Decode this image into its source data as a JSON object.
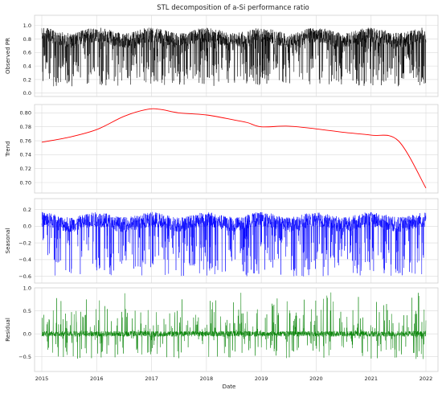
{
  "chart_data": {
    "type": "line",
    "title": "STL decomposition of a-Si performance ratio",
    "xlabel": "Date",
    "x_ticks": [
      "2015",
      "2016",
      "2017",
      "2018",
      "2019",
      "2020",
      "2021",
      "2022"
    ],
    "x_range": [
      "2015-01-01",
      "2022-01-01"
    ],
    "panels": [
      {
        "name": "observed",
        "ylabel": "Observed PR",
        "color": "#000000",
        "ylim": [
          -0.05,
          1.15
        ],
        "y_ticks": [
          "0.0",
          "0.2",
          "0.4",
          "0.6",
          "0.8",
          "1.0"
        ],
        "y_tick_values": [
          0.0,
          0.2,
          0.4,
          0.6,
          0.8,
          1.0
        ],
        "series_points_note": "daily values, approximately 0.1 to 1.12"
      },
      {
        "name": "trend",
        "ylabel": "Trend",
        "color": "#ff0000",
        "ylim": [
          0.685,
          0.812
        ],
        "y_ticks": [
          "0.70",
          "0.72",
          "0.74",
          "0.76",
          "0.78",
          "0.80"
        ],
        "y_tick_values": [
          0.7,
          0.72,
          0.74,
          0.76,
          0.78,
          0.8
        ],
        "x": [
          "2015-01-01",
          "2015-07-01",
          "2016-01-01",
          "2016-07-01",
          "2016-12-01",
          "2017-03-01",
          "2017-07-01",
          "2018-01-01",
          "2018-07-01",
          "2018-10-01",
          "2019-01-01",
          "2019-07-01",
          "2020-01-01",
          "2020-07-01",
          "2021-01-01",
          "2021-07-01",
          "2022-01-01"
        ],
        "values": [
          0.758,
          0.765,
          0.776,
          0.795,
          0.805,
          0.805,
          0.8,
          0.797,
          0.79,
          0.786,
          0.78,
          0.781,
          0.777,
          0.772,
          0.768,
          0.76,
          0.692
        ]
      },
      {
        "name": "seasonal",
        "ylabel": "Seasonal",
        "color": "#0000ff",
        "ylim": [
          -0.68,
          0.33
        ],
        "y_ticks": [
          "−0.6",
          "−0.4",
          "−0.2",
          "0.0",
          "0.2"
        ],
        "y_tick_values": [
          -0.6,
          -0.4,
          -0.2,
          0.0,
          0.2
        ]
      },
      {
        "name": "residual",
        "ylabel": "Residual",
        "color": "#008000",
        "ylim": [
          -0.82,
          1.0
        ],
        "y_ticks": [
          "−0.5",
          "0.0",
          "0.5",
          "1.0"
        ],
        "y_tick_values": [
          -0.5,
          0.0,
          0.5,
          1.0
        ]
      }
    ],
    "grid": true,
    "legend": "none"
  }
}
